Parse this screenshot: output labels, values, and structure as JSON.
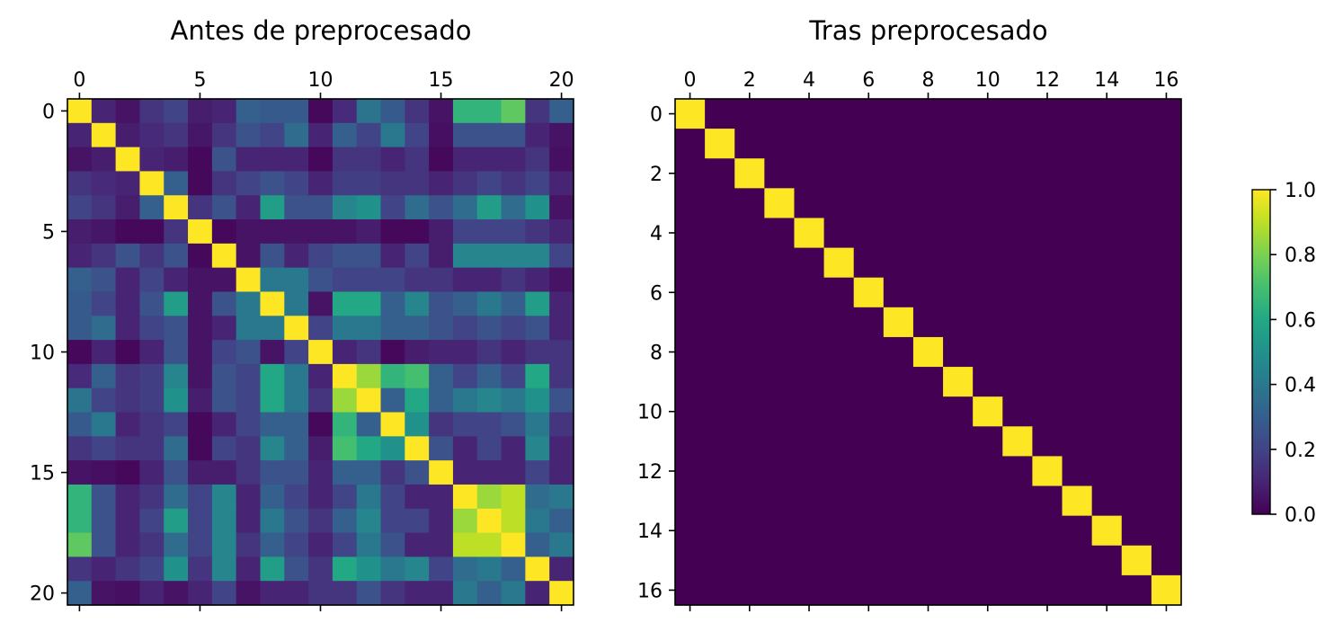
{
  "chart_data": [
    {
      "type": "heatmap",
      "title": "Antes de preprocesado",
      "xlabel": "",
      "ylabel": "",
      "n": 21,
      "x_ticks": [
        0,
        5,
        10,
        15,
        20
      ],
      "y_ticks": [
        0,
        5,
        10,
        15,
        20
      ],
      "x_axis_position": "top",
      "colormap": "viridis",
      "vmin": 0,
      "vmax": 1,
      "matrix": [
        [
          1.0,
          0.1,
          0.05,
          0.15,
          0.2,
          0.08,
          0.1,
          0.3,
          0.28,
          0.28,
          0.02,
          0.12,
          0.38,
          0.28,
          0.15,
          0.05,
          0.65,
          0.65,
          0.75,
          0.15,
          0.3
        ],
        [
          0.1,
          1.0,
          0.08,
          0.12,
          0.15,
          0.06,
          0.15,
          0.25,
          0.2,
          0.35,
          0.1,
          0.3,
          0.2,
          0.4,
          0.2,
          0.04,
          0.25,
          0.25,
          0.25,
          0.1,
          0.05
        ],
        [
          0.05,
          0.08,
          1.0,
          0.1,
          0.08,
          0.02,
          0.25,
          0.1,
          0.1,
          0.1,
          0.02,
          0.15,
          0.15,
          0.1,
          0.15,
          0.02,
          0.1,
          0.1,
          0.1,
          0.15,
          0.04
        ],
        [
          0.15,
          0.12,
          0.1,
          1.0,
          0.3,
          0.02,
          0.15,
          0.2,
          0.25,
          0.2,
          0.1,
          0.18,
          0.18,
          0.15,
          0.15,
          0.1,
          0.15,
          0.2,
          0.15,
          0.2,
          0.1
        ],
        [
          0.2,
          0.15,
          0.08,
          0.3,
          1.0,
          0.15,
          0.25,
          0.1,
          0.55,
          0.25,
          0.25,
          0.45,
          0.5,
          0.2,
          0.35,
          0.25,
          0.35,
          0.55,
          0.35,
          0.5,
          0.05
        ],
        [
          0.08,
          0.06,
          0.02,
          0.02,
          0.15,
          1.0,
          0.02,
          0.05,
          0.05,
          0.05,
          0.05,
          0.05,
          0.08,
          0.02,
          0.02,
          0.08,
          0.2,
          0.2,
          0.2,
          0.15,
          0.1
        ],
        [
          0.1,
          0.15,
          0.25,
          0.15,
          0.25,
          0.02,
          1.0,
          0.05,
          0.25,
          0.1,
          0.2,
          0.25,
          0.25,
          0.1,
          0.2,
          0.08,
          0.45,
          0.45,
          0.45,
          0.45,
          0.2
        ],
        [
          0.3,
          0.25,
          0.1,
          0.2,
          0.1,
          0.05,
          0.05,
          1.0,
          0.4,
          0.4,
          0.25,
          0.2,
          0.2,
          0.2,
          0.15,
          0.15,
          0.1,
          0.1,
          0.15,
          0.1,
          0.05
        ],
        [
          0.28,
          0.2,
          0.1,
          0.25,
          0.55,
          0.05,
          0.25,
          0.4,
          1.0,
          0.4,
          0.05,
          0.6,
          0.6,
          0.3,
          0.45,
          0.25,
          0.3,
          0.4,
          0.3,
          0.55,
          0.1
        ],
        [
          0.28,
          0.35,
          0.1,
          0.2,
          0.25,
          0.05,
          0.1,
          0.4,
          0.4,
          1.0,
          0.2,
          0.4,
          0.4,
          0.3,
          0.3,
          0.25,
          0.2,
          0.25,
          0.2,
          0.25,
          0.1
        ],
        [
          0.02,
          0.1,
          0.02,
          0.1,
          0.25,
          0.05,
          0.2,
          0.25,
          0.05,
          0.2,
          1.0,
          0.1,
          0.15,
          0.02,
          0.08,
          0.1,
          0.1,
          0.15,
          0.1,
          0.15,
          0.15
        ],
        [
          0.12,
          0.3,
          0.15,
          0.18,
          0.45,
          0.05,
          0.25,
          0.2,
          0.6,
          0.4,
          0.1,
          1.0,
          0.85,
          0.65,
          0.7,
          0.3,
          0.2,
          0.3,
          0.2,
          0.6,
          0.15
        ],
        [
          0.38,
          0.2,
          0.15,
          0.18,
          0.5,
          0.08,
          0.25,
          0.2,
          0.6,
          0.4,
          0.15,
          0.85,
          1.0,
          0.3,
          0.6,
          0.3,
          0.4,
          0.45,
          0.4,
          0.5,
          0.25
        ],
        [
          0.28,
          0.4,
          0.1,
          0.15,
          0.2,
          0.02,
          0.1,
          0.2,
          0.3,
          0.3,
          0.02,
          0.65,
          0.3,
          1.0,
          0.5,
          0.15,
          0.2,
          0.2,
          0.25,
          0.4,
          0.15
        ],
        [
          0.15,
          0.2,
          0.15,
          0.15,
          0.35,
          0.02,
          0.2,
          0.15,
          0.45,
          0.3,
          0.08,
          0.7,
          0.6,
          0.5,
          1.0,
          0.25,
          0.1,
          0.2,
          0.1,
          0.45,
          0.1
        ],
        [
          0.05,
          0.04,
          0.02,
          0.1,
          0.25,
          0.08,
          0.08,
          0.15,
          0.25,
          0.25,
          0.1,
          0.3,
          0.3,
          0.15,
          0.25,
          1.0,
          0.1,
          0.1,
          0.1,
          0.2,
          0.1
        ],
        [
          0.65,
          0.25,
          0.1,
          0.15,
          0.35,
          0.2,
          0.45,
          0.1,
          0.3,
          0.2,
          0.1,
          0.2,
          0.4,
          0.2,
          0.1,
          0.1,
          1.0,
          0.85,
          0.9,
          0.35,
          0.4
        ],
        [
          0.65,
          0.25,
          0.1,
          0.2,
          0.55,
          0.2,
          0.45,
          0.1,
          0.4,
          0.25,
          0.15,
          0.3,
          0.45,
          0.2,
          0.2,
          0.1,
          0.85,
          1.0,
          0.9,
          0.4,
          0.3
        ],
        [
          0.75,
          0.25,
          0.1,
          0.15,
          0.35,
          0.2,
          0.45,
          0.15,
          0.3,
          0.2,
          0.1,
          0.2,
          0.4,
          0.25,
          0.1,
          0.1,
          0.9,
          0.9,
          1.0,
          0.3,
          0.4
        ],
        [
          0.15,
          0.1,
          0.15,
          0.2,
          0.5,
          0.15,
          0.45,
          0.1,
          0.55,
          0.25,
          0.15,
          0.6,
          0.5,
          0.4,
          0.45,
          0.2,
          0.35,
          0.4,
          0.3,
          1.0,
          0.1
        ],
        [
          0.3,
          0.05,
          0.04,
          0.1,
          0.05,
          0.1,
          0.2,
          0.05,
          0.1,
          0.1,
          0.15,
          0.15,
          0.25,
          0.15,
          0.1,
          0.1,
          0.4,
          0.3,
          0.4,
          0.1,
          1.0
        ]
      ]
    },
    {
      "type": "heatmap",
      "title": "Tras preprocesado",
      "xlabel": "",
      "ylabel": "",
      "n": 17,
      "x_ticks": [
        0,
        2,
        4,
        6,
        8,
        10,
        12,
        14,
        16
      ],
      "y_ticks": [
        0,
        2,
        4,
        6,
        8,
        10,
        12,
        14,
        16
      ],
      "x_axis_position": "top",
      "colormap": "viridis",
      "vmin": 0,
      "vmax": 1,
      "description_values": "identity",
      "diagonal_value": 1.0,
      "off_diagonal_value": 0.0
    }
  ],
  "colorbar": {
    "ticks": [
      "0.0",
      "0.2",
      "0.4",
      "0.6",
      "0.8",
      "1.0"
    ],
    "vmin": 0,
    "vmax": 1
  }
}
